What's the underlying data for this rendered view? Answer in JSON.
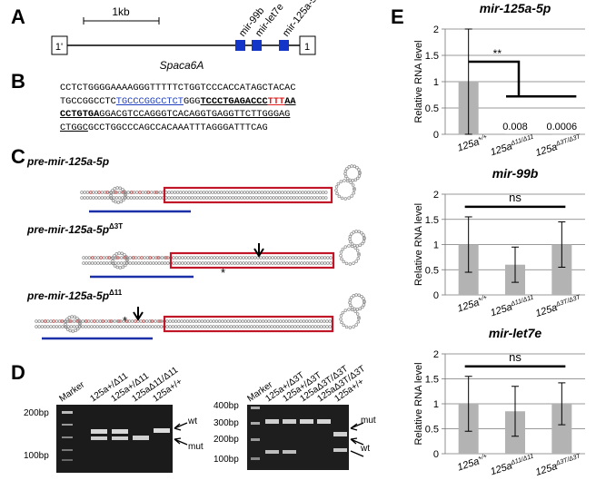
{
  "panels": {
    "A": "A",
    "B": "B",
    "C": "C",
    "D": "D",
    "E": "E"
  },
  "panelA": {
    "scale": "1kb",
    "gene": "Spaca6A",
    "exon_left": "1'",
    "exon_right": "1",
    "mirs": [
      "mir-99b",
      "mir-let7e",
      "mir-125a-5p"
    ]
  },
  "panelB": {
    "lines": [
      [
        {
          "t": "CCTCTGGGGAAAAGGGTTTTTCTGGTCCCACCATAGCTACAC",
          "s": ""
        }
      ],
      [
        {
          "t": "TGCCGGCCTC",
          "s": ""
        },
        {
          "t": "TGCCCGGCCTCT",
          "s": "u blue"
        },
        {
          "t": "GGG",
          "s": ""
        },
        {
          "t": "TCCCTGAGACCC",
          "s": "u b"
        },
        {
          "t": "TTT",
          "s": "u b red"
        },
        {
          "t": "AA",
          "s": "u b"
        }
      ],
      [
        {
          "t": "CCTGTGA",
          "s": "u b"
        },
        {
          "t": "GGACGTCCAGGGTCACAGGTGAGGTTCTTGGGAG",
          "s": "u"
        }
      ],
      [
        {
          "t": "CTGGC",
          "s": "u"
        },
        {
          "t": "GCCTGGCCCAGCCACAAATTTAGGGATTTCAG",
          "s": ""
        }
      ]
    ]
  },
  "panelC": {
    "titles": [
      {
        "main": "pre-mir-125a-5p",
        "sup": ""
      },
      {
        "main": "pre-mir-125a-5p",
        "sup": "Δ3T"
      },
      {
        "main": "pre-mir-125a-5p",
        "sup": "Δ11"
      }
    ]
  },
  "panelD": {
    "gel1": {
      "marker": "Marker",
      "lanes": [
        "125a+/Δ11",
        "125a+/Δ11",
        "125aΔ11/Δ11",
        "125a+/+"
      ],
      "size_labels": [
        "200bp",
        "100bp"
      ],
      "arrows": [
        "wt",
        "mut"
      ]
    },
    "gel2": {
      "marker": "Marker",
      "lanes": [
        "125a+/Δ3T",
        "125a+/Δ3T",
        "125aΔ3T/Δ3T",
        "125aΔ3T/Δ3T",
        "125a+/+"
      ],
      "size_labels": [
        "400bp",
        "300bp",
        "200bp",
        "100bp"
      ],
      "arrows": [
        "mut",
        "wt"
      ]
    }
  },
  "panelE": {
    "ylabel": "Relative RNA level",
    "xlabels": [
      {
        "base": "125a",
        "sup": "+/+"
      },
      {
        "base": "125a",
        "sup": "Δ11/Δ11"
      },
      {
        "base": "125a",
        "sup": "Δ3T/Δ3T"
      }
    ],
    "charts": [
      {
        "title": "mir-125a-5p",
        "sig": "**",
        "value_labels": [
          "",
          "0.008",
          "0.0006"
        ]
      },
      {
        "title": "mir-99b",
        "sig": "ns",
        "value_labels": [
          "",
          "",
          ""
        ]
      },
      {
        "title": "mir-let7e",
        "sig": "ns",
        "value_labels": [
          "",
          "",
          ""
        ]
      }
    ]
  },
  "chart_data": [
    {
      "type": "bar",
      "title": "mir-125a-5p",
      "ylabel": "Relative RNA level",
      "categories": [
        "125a+/+",
        "125aΔ11/Δ11",
        "125aΔ3T/Δ3T"
      ],
      "values": [
        1,
        0.008,
        0.0006
      ],
      "error": [
        1.0,
        0,
        0
      ],
      "ylim": [
        0,
        2
      ],
      "yticks": [
        0,
        0.5,
        1,
        1.5,
        2
      ],
      "grid": true,
      "annotation": "**"
    },
    {
      "type": "bar",
      "title": "mir-99b",
      "ylabel": "Relative RNA level",
      "categories": [
        "125a+/+",
        "125aΔ11/Δ11",
        "125aΔ3T/Δ3T"
      ],
      "values": [
        1,
        0.6,
        1
      ],
      "error": [
        0.55,
        0.35,
        0.45
      ],
      "ylim": [
        0,
        2
      ],
      "yticks": [
        0,
        0.5,
        1,
        1.5,
        2
      ],
      "grid": true,
      "annotation": "ns"
    },
    {
      "type": "bar",
      "title": "mir-let7e",
      "ylabel": "Relative RNA level",
      "categories": [
        "125a+/+",
        "125aΔ11/Δ11",
        "125aΔ3T/Δ3T"
      ],
      "values": [
        1,
        0.85,
        1
      ],
      "error": [
        0.55,
        0.5,
        0.42
      ],
      "ylim": [
        0,
        2
      ],
      "yticks": [
        0,
        0.5,
        1,
        1.5,
        2
      ],
      "grid": true,
      "annotation": "ns"
    }
  ]
}
